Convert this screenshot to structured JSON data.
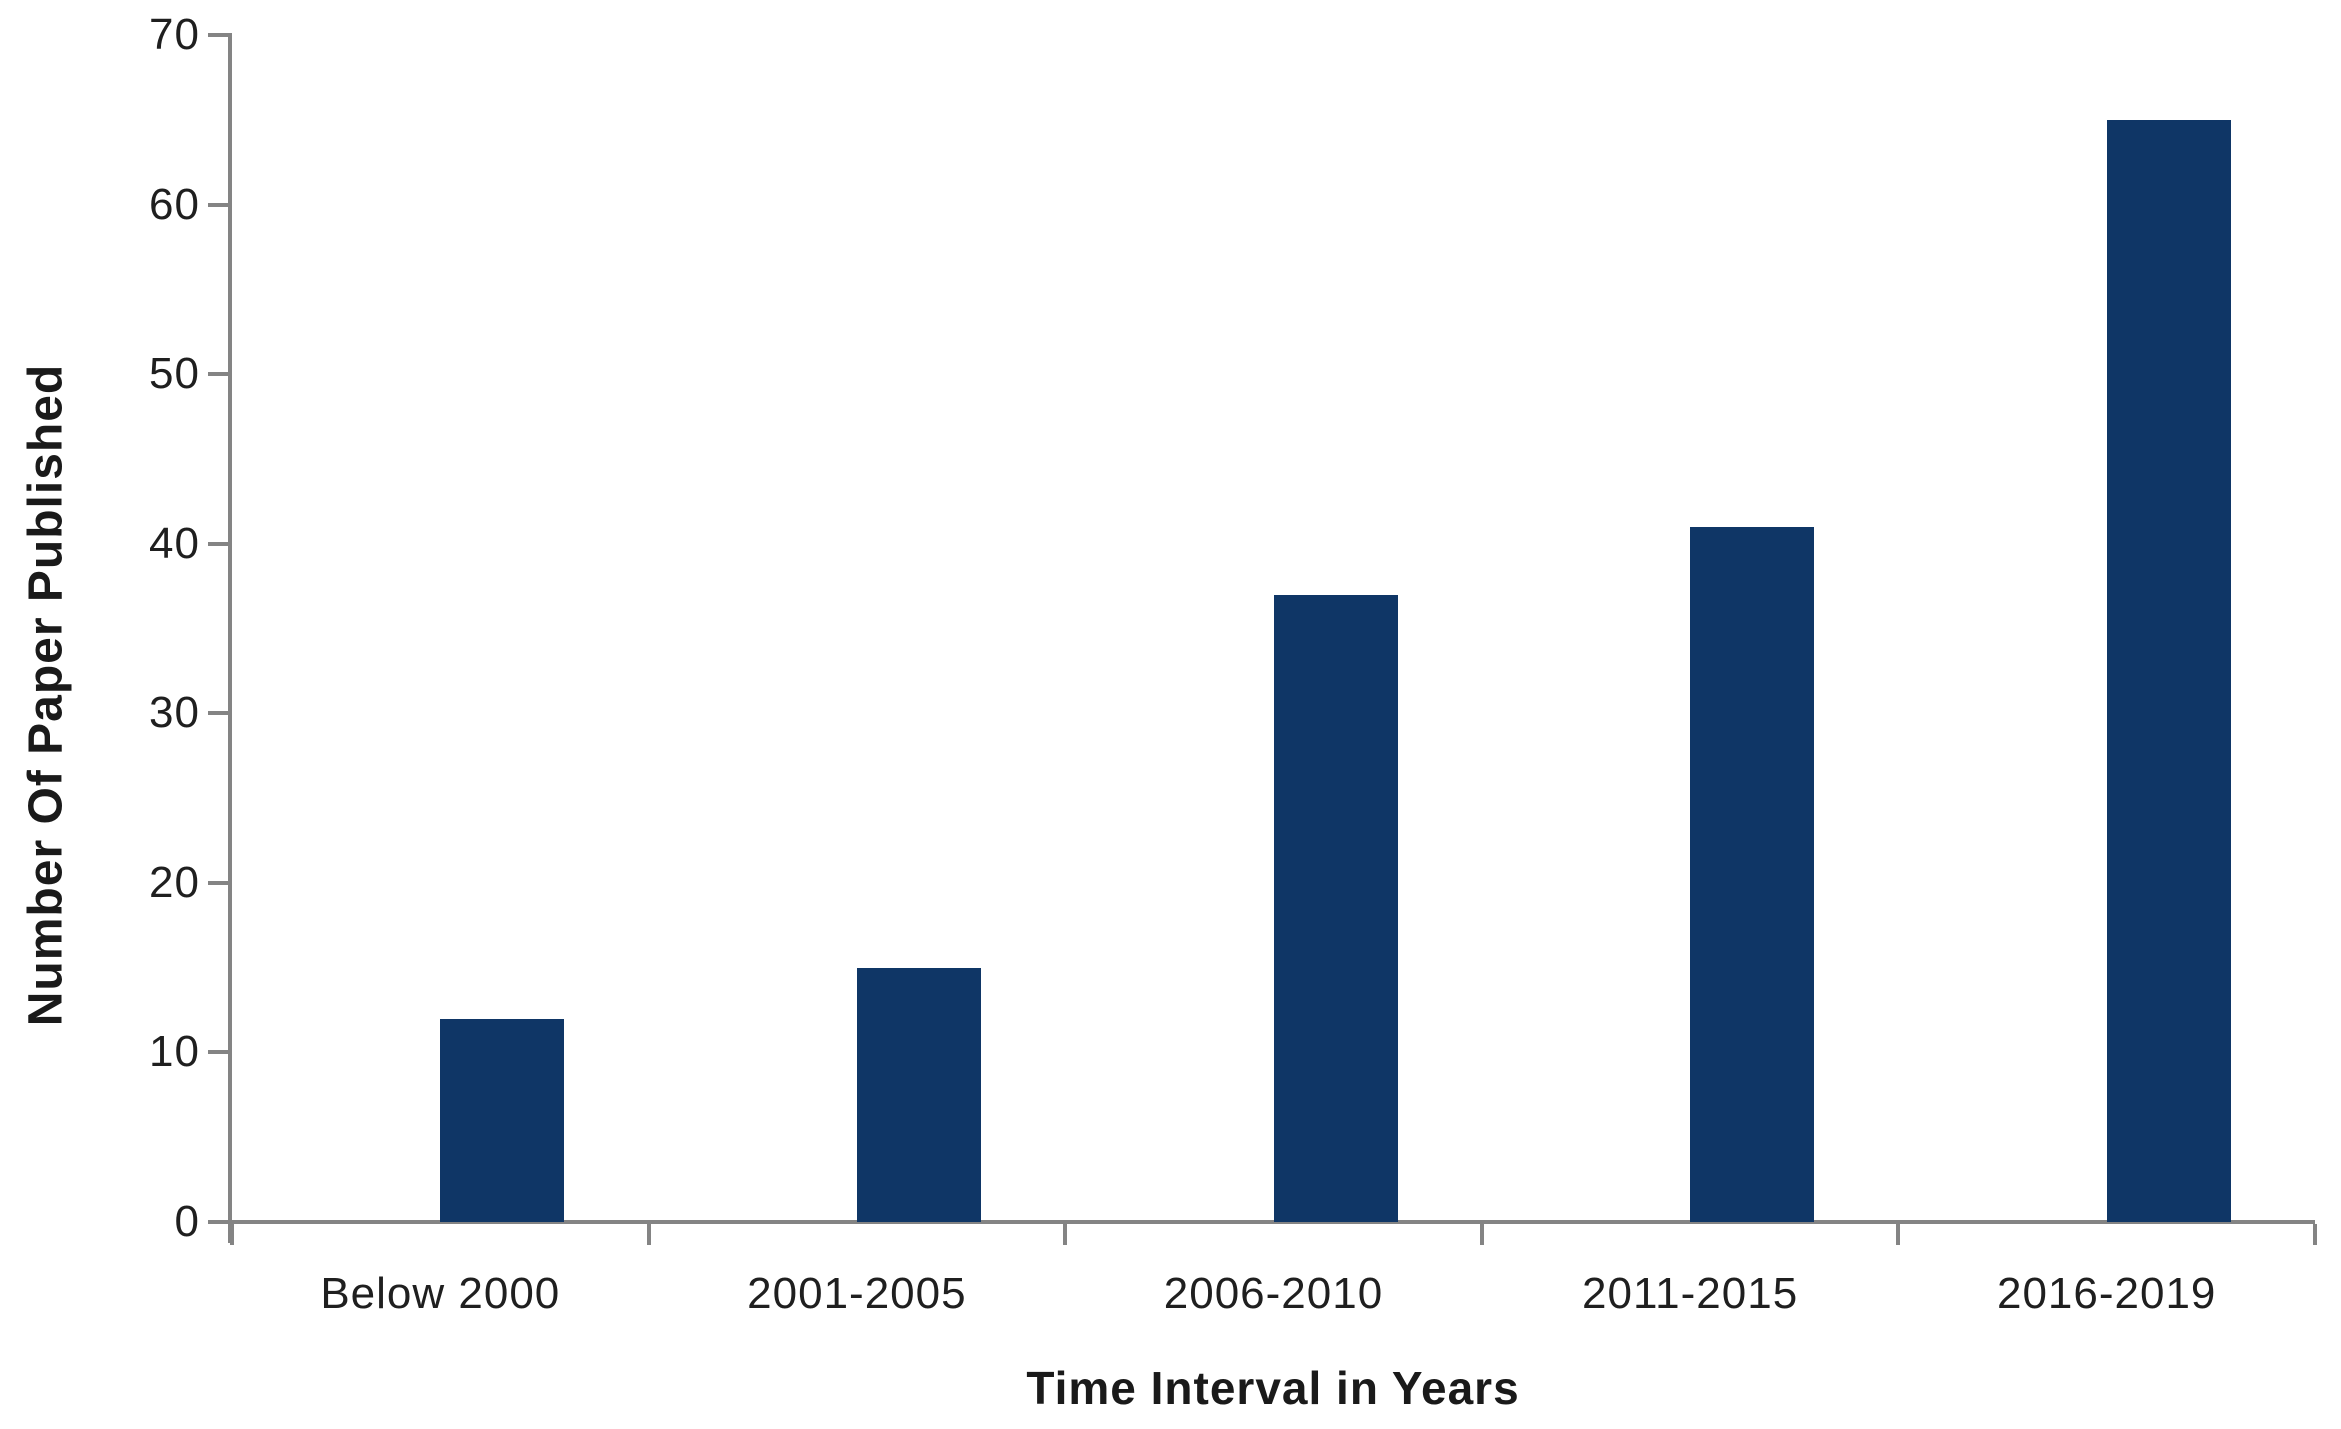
{
  "chart_data": {
    "type": "bar",
    "title": "",
    "categories": [
      "Below 2000",
      "2001-2005",
      "2006-2010",
      "2011-2015",
      "2016-2019"
    ],
    "values": [
      12,
      15,
      37,
      41,
      65
    ],
    "xlabel": "Time Interval in Years",
    "ylabel": "Number Of Paper Published",
    "ylim": [
      0,
      70
    ],
    "yticks": [
      0,
      10,
      20,
      30,
      40,
      50,
      60,
      70
    ],
    "grid": false,
    "legend": "none",
    "bar_color": "#0F3666",
    "axis_color": "#848484",
    "text_color": "#1F1F1F"
  }
}
